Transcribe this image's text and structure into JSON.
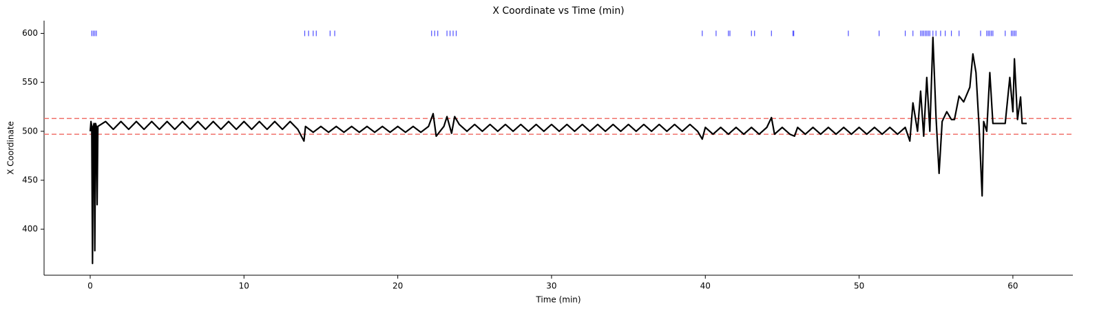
{
  "chart_data": {
    "type": "line",
    "title": "X Coordinate vs Time (min)",
    "xlabel": "Time (min)",
    "ylabel": "X Coordinate",
    "x": [
      0,
      0.05,
      0.1,
      0.15,
      0.2,
      0.25,
      0.3,
      0.35,
      0.4,
      0.45,
      0.5,
      1,
      1.5,
      2,
      2.5,
      3,
      3.5,
      4,
      4.5,
      5,
      5.5,
      6,
      6.5,
      7,
      7.5,
      8,
      8.5,
      9,
      9.5,
      10,
      10.5,
      11,
      11.5,
      12,
      12.5,
      13,
      13.5,
      13.9,
      14,
      14.5,
      15,
      15.5,
      16,
      16.5,
      17,
      17.5,
      18,
      18.5,
      19,
      19.5,
      20,
      20.5,
      21,
      21.5,
      22,
      22.3,
      22.5,
      23,
      23.2,
      23.5,
      23.7,
      24,
      24.5,
      25,
      25.5,
      26,
      26.5,
      27,
      27.5,
      28,
      28.5,
      29,
      29.5,
      30,
      30.5,
      31,
      31.5,
      32,
      32.5,
      33,
      33.5,
      34,
      34.5,
      35,
      35.5,
      36,
      36.5,
      37,
      37.5,
      38,
      38.5,
      39,
      39.5,
      39.8,
      40,
      40.5,
      41,
      41.5,
      42,
      42.5,
      43,
      43.5,
      44,
      44.3,
      44.5,
      45,
      45.5,
      45.8,
      46,
      46.5,
      47,
      47.5,
      48,
      48.5,
      49,
      49.5,
      50,
      50.5,
      51,
      51.5,
      52,
      52.5,
      53,
      53.3,
      53.5,
      53.8,
      54,
      54.2,
      54.4,
      54.6,
      54.8,
      55,
      55.2,
      55.4,
      55.7,
      56,
      56.2,
      56.5,
      56.8,
      57.2,
      57.4,
      57.6,
      57.8,
      58,
      58.1,
      58.3,
      58.5,
      58.7,
      59,
      59.5,
      59.8,
      60,
      60.1,
      60.3,
      60.5,
      60.6,
      60.9
    ],
    "series": [
      {
        "name": "X Coordinate",
        "color": "#000000",
        "values": [
          500,
          510,
          505,
          365,
          505,
          508,
          378,
          508,
          505,
          425,
          505,
          510,
          502,
          510,
          502,
          510,
          502,
          510,
          502,
          510,
          502,
          510,
          502,
          510,
          502,
          510,
          502,
          510,
          502,
          510,
          502,
          510,
          502,
          510,
          502,
          510,
          502,
          490,
          505,
          499,
          505,
          499,
          505,
          499,
          505,
          499,
          505,
          499,
          505,
          499,
          505,
          499,
          505,
          499,
          505,
          518,
          495,
          505,
          515,
          498,
          515,
          507,
          500,
          507,
          500,
          507,
          500,
          507,
          500,
          507,
          500,
          507,
          500,
          507,
          500,
          507,
          500,
          507,
          500,
          507,
          500,
          507,
          500,
          507,
          500,
          507,
          500,
          507,
          500,
          507,
          500,
          507,
          500,
          492,
          504,
          497,
          504,
          497,
          504,
          497,
          504,
          497,
          504,
          514,
          497,
          504,
          497,
          495,
          504,
          497,
          504,
          497,
          504,
          497,
          504,
          497,
          504,
          497,
          504,
          497,
          504,
          497,
          504,
          490,
          529,
          500,
          541,
          495,
          555,
          500,
          596,
          515,
          457,
          510,
          520,
          512,
          512,
          536,
          530,
          545,
          579,
          560,
          505,
          434,
          510,
          500,
          560,
          508,
          508,
          508,
          555,
          520,
          574,
          512,
          535,
          508,
          508
        ]
      }
    ],
    "events": {
      "x": [
        0.1,
        0.2,
        0.3,
        0.4,
        13.95,
        14.2,
        14.5,
        14.7,
        15.6,
        15.9,
        22.2,
        22.4,
        22.6,
        23.2,
        23.4,
        23.6,
        23.8,
        39.8,
        40.7,
        41.5,
        41.6,
        43,
        43.2,
        44.3,
        45.7,
        45.75,
        49.3,
        51.3,
        53,
        53.5,
        54,
        54.1,
        54.2,
        54.3,
        54.4,
        54.5,
        54.6,
        54.8,
        55,
        55.3,
        55.6,
        56,
        56.5,
        57.9,
        58.3,
        58.4,
        58.5,
        58.6,
        58.7,
        59.5,
        59.9,
        60,
        60.1,
        60.2
      ],
      "y": 600,
      "color": "#4d4dff"
    },
    "hlines": {
      "values": [
        513,
        497
      ],
      "color": "#f0706a"
    },
    "xlim": [
      -3,
      63.9
    ],
    "ylim": [
      353,
      613
    ],
    "xticks": [
      0,
      10,
      20,
      30,
      40,
      50,
      60
    ],
    "yticks": [
      400,
      450,
      500,
      550,
      600
    ]
  }
}
